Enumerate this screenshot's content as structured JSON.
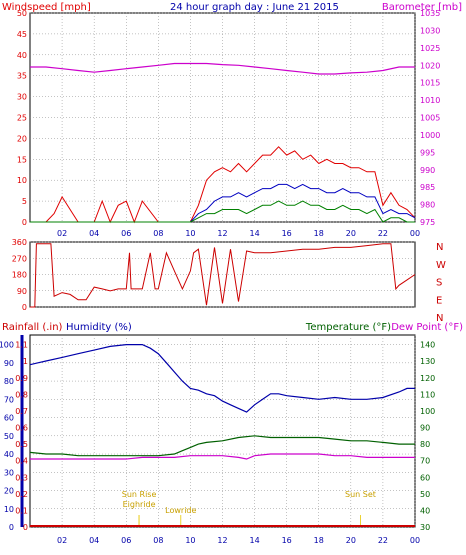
{
  "title": "24 hour graph day : June 21 2015",
  "colors": {
    "wind": "#e00000",
    "gust": "#e00000",
    "avg": "#0000c0",
    "low": "#008000",
    "baro": "#cc00cc",
    "dir": "#cc0000",
    "rain": "#cc0000",
    "humidity": "#0000aa",
    "temp": "#006000",
    "dew": "#cc00cc",
    "solar": "#e8c800",
    "axis_left": "#0000aa",
    "grid": "#888888"
  },
  "chart_data": [
    {
      "type": "line",
      "panel": "wind-baro",
      "left_label": "Windspeed [mph]",
      "right_label": "Barometer [mb]",
      "left_ticks": [
        "0",
        "5",
        "10",
        "15",
        "20",
        "25",
        "30",
        "35",
        "40",
        "45",
        "50"
      ],
      "right_ticks": [
        "975",
        "980",
        "985",
        "990",
        "995",
        "1000",
        "1005",
        "1010",
        "1015",
        "1020",
        "1025",
        "1030",
        "1035"
      ],
      "ylim_left": [
        0,
        50
      ],
      "ylim_right": [
        975,
        1035
      ],
      "x_ticks": [
        "02",
        "04",
        "06",
        "08",
        "10",
        "12",
        "14",
        "16",
        "18",
        "20",
        "22",
        "00"
      ],
      "xlim": [
        0,
        24
      ],
      "series": [
        {
          "name": "Windspeed gust",
          "x": [
            0,
            1,
            1.5,
            2,
            2.5,
            3,
            4,
            4.5,
            5,
            5.5,
            6,
            6.5,
            7,
            8,
            9,
            9.5,
            10,
            10.5,
            11,
            11.5,
            12,
            12.5,
            13,
            13.5,
            14,
            14.5,
            15,
            15.5,
            16,
            16.5,
            17,
            17.5,
            18,
            18.5,
            19,
            19.5,
            20,
            20.5,
            21,
            21.5,
            22,
            22.5,
            23,
            23.5,
            24
          ],
          "values": [
            0,
            0,
            2,
            6,
            3,
            0,
            0,
            5,
            0,
            4,
            5,
            0,
            5,
            0,
            0,
            0,
            0,
            4,
            10,
            12,
            13,
            12,
            14,
            12,
            14,
            16,
            16,
            18,
            16,
            17,
            15,
            16,
            14,
            15,
            14,
            14,
            13,
            13,
            12,
            12,
            4,
            7,
            4,
            3,
            1
          ]
        },
        {
          "name": "Windspeed average",
          "x": [
            0,
            9.5,
            10,
            10.5,
            11,
            11.5,
            12,
            12.5,
            13,
            13.5,
            14,
            14.5,
            15,
            15.5,
            16,
            16.5,
            17,
            17.5,
            18,
            18.5,
            19,
            19.5,
            20,
            20.5,
            21,
            21.5,
            22,
            22.5,
            23,
            23.5,
            24
          ],
          "values": [
            0,
            0,
            0,
            2,
            3,
            5,
            6,
            6,
            7,
            6,
            7,
            8,
            8,
            9,
            9,
            8,
            9,
            8,
            8,
            7,
            7,
            8,
            7,
            7,
            6,
            6,
            2,
            3,
            2,
            2,
            1
          ]
        },
        {
          "name": "Windspeed low",
          "x": [
            0,
            9.5,
            10,
            10.5,
            11,
            11.5,
            12,
            12.5,
            13,
            13.5,
            14,
            14.5,
            15,
            15.5,
            16,
            16.5,
            17,
            17.5,
            18,
            18.5,
            19,
            19.5,
            20,
            20.5,
            21,
            21.5,
            22,
            22.5,
            23,
            23.5,
            24
          ],
          "values": [
            0,
            0,
            0,
            1,
            2,
            2,
            3,
            3,
            3,
            2,
            3,
            4,
            4,
            5,
            4,
            4,
            5,
            4,
            4,
            3,
            3,
            4,
            3,
            3,
            2,
            3,
            0,
            1,
            1,
            0,
            0
          ]
        },
        {
          "name": "Barometer",
          "x": [
            0,
            1,
            2,
            3,
            4,
            5,
            6,
            7,
            8,
            9,
            10,
            11,
            12,
            13,
            14,
            15,
            16,
            17,
            18,
            19,
            20,
            21,
            22,
            23,
            24
          ],
          "values": [
            1019.5,
            1019.5,
            1019,
            1018.5,
            1018,
            1018.5,
            1019,
            1019.5,
            1020,
            1020.5,
            1020.5,
            1020.5,
            1020.2,
            1020,
            1019.5,
            1019,
            1018.5,
            1018,
            1017.5,
            1017.5,
            1017.8,
            1018,
            1018.5,
            1019.5,
            1019.5
          ]
        }
      ]
    },
    {
      "type": "line",
      "panel": "direction",
      "left_ticks": [
        "0",
        "90",
        "180",
        "270",
        "360"
      ],
      "right_ticks": [
        "N",
        "E",
        "S",
        "W",
        "N"
      ],
      "ylim": [
        0,
        360
      ],
      "xlim": [
        0,
        24
      ],
      "series": [
        {
          "name": "Wind direction",
          "x": [
            0,
            0.3,
            0.4,
            1.3,
            1.5,
            2,
            2.5,
            3,
            3.5,
            4,
            4.5,
            5,
            5.5,
            6,
            6.2,
            6.3,
            7,
            7.5,
            7.8,
            8,
            8.5,
            9,
            9.5,
            10,
            10.2,
            10.5,
            11,
            11.5,
            12,
            12.5,
            13,
            13.5,
            14,
            14.5,
            15,
            16,
            17,
            18,
            19,
            20,
            21,
            22,
            22.5,
            22.8,
            23,
            23.5,
            24
          ],
          "values": [
            0,
            0,
            350,
            350,
            60,
            80,
            70,
            40,
            40,
            110,
            100,
            90,
            100,
            100,
            300,
            100,
            100,
            300,
            100,
            100,
            300,
            200,
            100,
            200,
            300,
            320,
            10,
            330,
            20,
            320,
            30,
            310,
            300,
            300,
            300,
            310,
            320,
            320,
            330,
            330,
            340,
            350,
            350,
            100,
            120,
            150,
            180
          ]
        }
      ]
    },
    {
      "type": "line",
      "panel": "rain-hum-temp",
      "left_label_rain": "Rainfall (.in)",
      "left_label_humidity": "Humidity (%)",
      "right_label_temp": "Temperature (°F)",
      "right_label_dew": "Dew Point (°F)",
      "humidity_ticks": [
        "0",
        "10",
        "20",
        "30",
        "40",
        "50",
        "60",
        "70",
        "80",
        "90",
        "100"
      ],
      "rain_ticks": [
        "0",
        "0.1",
        "0.2",
        "0.3",
        "0.4",
        "0.5",
        "0.6",
        "0.7",
        "0.8",
        "0.9",
        "1",
        "1.1"
      ],
      "temp_ticks": [
        "30",
        "40",
        "50",
        "60",
        "70",
        "80",
        "90",
        "100",
        "110",
        "120",
        "130",
        "140"
      ],
      "ylim_humidity": [
        0,
        100
      ],
      "ylim_temp": [
        30,
        140
      ],
      "xlim": [
        0,
        24
      ],
      "annotations": [
        {
          "text": "Sun Rise",
          "x": 6.8
        },
        {
          "text": "Eighride",
          "x": 6.8
        },
        {
          "text": "Lowride",
          "x": 9.4
        },
        {
          "text": "Sun Set",
          "x": 20.6
        }
      ],
      "series": [
        {
          "name": "Humidity",
          "x": [
            0,
            0.5,
            1,
            2,
            3,
            4,
            5,
            6,
            7,
            7.5,
            8,
            8.5,
            9,
            9.5,
            10,
            10.5,
            11,
            11.5,
            12,
            12.5,
            13,
            13.5,
            14,
            14.5,
            15,
            15.5,
            16,
            17,
            18,
            19,
            20,
            21,
            22,
            23,
            23.5,
            24
          ],
          "values": [
            89,
            90,
            91,
            93,
            95,
            97,
            99,
            100,
            100,
            98,
            95,
            90,
            85,
            80,
            76,
            75,
            73,
            72,
            69,
            67,
            65,
            63,
            67,
            70,
            73,
            73,
            72,
            71,
            70,
            71,
            70,
            70,
            71,
            74,
            76,
            76
          ]
        },
        {
          "name": "Temperature",
          "x": [
            0,
            1,
            2,
            3,
            4,
            5,
            6,
            7,
            8,
            9,
            9.5,
            10,
            10.5,
            11,
            12,
            13,
            14,
            15,
            16,
            17,
            18,
            19,
            20,
            21,
            22,
            23,
            24
          ],
          "values": [
            75,
            74,
            74,
            73,
            73,
            73,
            73,
            73,
            73,
            74,
            76,
            78,
            80,
            81,
            82,
            84,
            85,
            84,
            84,
            84,
            84,
            83,
            82,
            82,
            81,
            80,
            80
          ]
        },
        {
          "name": "Dew Point",
          "x": [
            0,
            1,
            2,
            3,
            4,
            5,
            6,
            7,
            8,
            9,
            10,
            11,
            12,
            13,
            13.5,
            14,
            15,
            16,
            17,
            18,
            19,
            20,
            21,
            22,
            23,
            24
          ],
          "values": [
            71,
            71,
            71,
            71,
            71,
            71,
            71,
            72,
            72,
            72,
            73,
            73,
            73,
            72,
            71,
            73,
            74,
            74,
            74,
            74,
            73,
            73,
            72,
            72,
            72,
            72
          ]
        },
        {
          "name": "Rainfall",
          "x": [
            0,
            24
          ],
          "values": [
            0,
            0
          ]
        }
      ]
    }
  ]
}
